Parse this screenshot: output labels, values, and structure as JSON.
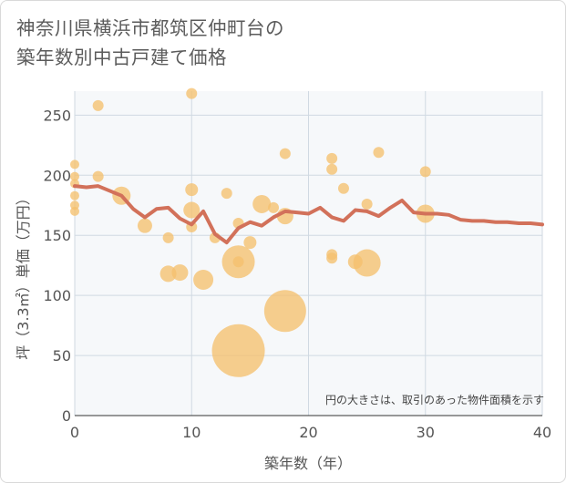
{
  "title_lines": [
    "神奈川県横浜市都筑区仲町台の",
    "築年数別中古戸建て価格"
  ],
  "colors": {
    "bubble": "#f5c06e",
    "line": "#d2715a",
    "grid": "#d0d9e2",
    "plot_bg": "#f6f8fa"
  },
  "chart_data": {
    "type": "scatter",
    "title": "神奈川県横浜市都筑区仲町台の築年数別中古戸建て価格",
    "xlabel": "築年数（年）",
    "ylabel": "坪（3.3㎡）単価（万円）",
    "xlim": [
      0,
      40
    ],
    "ylim": [
      0,
      270
    ],
    "xticks": [
      0,
      10,
      20,
      30,
      40
    ],
    "yticks": [
      0,
      50,
      100,
      150,
      200,
      250
    ],
    "grid": true,
    "note": "円の大きさは、取引のあった物件面積を示す",
    "bubbles": [
      {
        "x": 0,
        "y": 209,
        "s": 5
      },
      {
        "x": 0,
        "y": 199,
        "s": 5
      },
      {
        "x": 0,
        "y": 193,
        "s": 5
      },
      {
        "x": 0,
        "y": 183,
        "s": 5
      },
      {
        "x": 0,
        "y": 175,
        "s": 5
      },
      {
        "x": 0,
        "y": 170,
        "s": 5
      },
      {
        "x": 2,
        "y": 258,
        "s": 6
      },
      {
        "x": 2,
        "y": 199,
        "s": 6
      },
      {
        "x": 4,
        "y": 183,
        "s": 10
      },
      {
        "x": 6,
        "y": 158,
        "s": 8
      },
      {
        "x": 8,
        "y": 148,
        "s": 6
      },
      {
        "x": 8,
        "y": 118,
        "s": 9
      },
      {
        "x": 9,
        "y": 119,
        "s": 9
      },
      {
        "x": 10,
        "y": 268,
        "s": 6
      },
      {
        "x": 10,
        "y": 188,
        "s": 7
      },
      {
        "x": 10,
        "y": 171,
        "s": 9
      },
      {
        "x": 10,
        "y": 157,
        "s": 6
      },
      {
        "x": 11,
        "y": 113,
        "s": 11
      },
      {
        "x": 12,
        "y": 148,
        "s": 6
      },
      {
        "x": 13,
        "y": 185,
        "s": 6
      },
      {
        "x": 14,
        "y": 160,
        "s": 6
      },
      {
        "x": 14,
        "y": 128,
        "s": 18
      },
      {
        "x": 14,
        "y": 128,
        "s": 6
      },
      {
        "x": 14,
        "y": 54,
        "s": 29
      },
      {
        "x": 15,
        "y": 144,
        "s": 7
      },
      {
        "x": 16,
        "y": 176,
        "s": 10
      },
      {
        "x": 17,
        "y": 173,
        "s": 6
      },
      {
        "x": 18,
        "y": 218,
        "s": 6
      },
      {
        "x": 18,
        "y": 166,
        "s": 9
      },
      {
        "x": 18,
        "y": 87,
        "s": 23
      },
      {
        "x": 22,
        "y": 214,
        "s": 6
      },
      {
        "x": 22,
        "y": 205,
        "s": 6
      },
      {
        "x": 22,
        "y": 134,
        "s": 6
      },
      {
        "x": 22,
        "y": 131,
        "s": 6
      },
      {
        "x": 23,
        "y": 189,
        "s": 6
      },
      {
        "x": 24,
        "y": 128,
        "s": 8
      },
      {
        "x": 25,
        "y": 176,
        "s": 6
      },
      {
        "x": 25,
        "y": 127,
        "s": 15
      },
      {
        "x": 26,
        "y": 219,
        "s": 6
      },
      {
        "x": 30,
        "y": 203,
        "s": 6
      },
      {
        "x": 30,
        "y": 168,
        "s": 10
      }
    ],
    "series": [
      {
        "x": [
          0,
          1,
          2,
          3,
          4,
          5,
          6,
          7,
          8,
          9,
          10,
          11,
          12,
          13,
          14,
          15,
          16,
          17,
          18,
          19,
          20,
          21,
          22,
          23,
          24,
          25,
          26,
          27,
          28,
          29,
          30,
          31,
          32,
          33,
          34,
          35,
          36,
          37,
          38,
          39,
          40
        ],
        "values": [
          191,
          190,
          191,
          187,
          183,
          172,
          165,
          172,
          173,
          164,
          159,
          170,
          151,
          144,
          156,
          161,
          158,
          165,
          170,
          169,
          168,
          173,
          165,
          162,
          171,
          170,
          166,
          173,
          179,
          169,
          168,
          168,
          167,
          163,
          162,
          162,
          161,
          161,
          160,
          160,
          159
        ]
      }
    ]
  }
}
